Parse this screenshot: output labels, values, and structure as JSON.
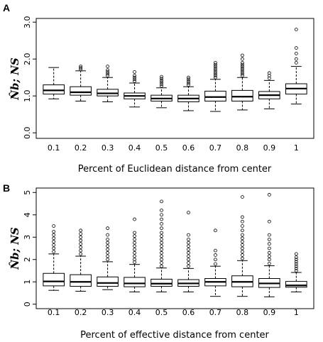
{
  "chart_data": [
    {
      "type": "boxplot",
      "panel_label": "A",
      "xlabel": "Percent of Euclidean distance from center",
      "ylabel": "N̂b; NS",
      "categories": [
        "0.1",
        "0.2",
        "0.3",
        "0.4",
        "0.5",
        "0.6",
        "0.7",
        "0.8",
        "0.9",
        "1"
      ],
      "ylim": [
        -0.15,
        3.1
      ],
      "yticks": [
        "0.0",
        "1.0",
        "2.0",
        "3.0"
      ],
      "ytick_values": [
        0,
        1,
        2,
        3
      ],
      "boxes": [
        {
          "whisker_low": 0.92,
          "q1": 1.05,
          "median": 1.15,
          "q3": 1.3,
          "whisker_high": 1.77,
          "outliers": []
        },
        {
          "whisker_low": 0.86,
          "q1": 1.02,
          "median": 1.1,
          "q3": 1.25,
          "whisker_high": 1.68,
          "outliers": [
            1.72,
            1.76,
            1.8
          ]
        },
        {
          "whisker_low": 0.84,
          "q1": 1.0,
          "median": 1.07,
          "q3": 1.18,
          "whisker_high": 1.5,
          "outliers": [
            1.55,
            1.6,
            1.65,
            1.7,
            1.8
          ]
        },
        {
          "whisker_low": 0.7,
          "q1": 0.92,
          "median": 1.0,
          "q3": 1.08,
          "whisker_high": 1.35,
          "outliers": [
            1.4,
            1.45,
            1.5,
            1.55,
            1.65
          ]
        },
        {
          "whisker_low": 0.68,
          "q1": 0.86,
          "median": 0.93,
          "q3": 1.02,
          "whisker_high": 1.22,
          "outliers": [
            1.27,
            1.32,
            1.37,
            1.42,
            1.47,
            1.52
          ]
        },
        {
          "whisker_low": 0.6,
          "q1": 0.84,
          "median": 0.93,
          "q3": 1.02,
          "whisker_high": 1.25,
          "outliers": [
            1.3,
            1.35,
            1.4,
            1.45,
            1.5
          ]
        },
        {
          "whisker_low": 0.58,
          "q1": 0.86,
          "median": 0.97,
          "q3": 1.13,
          "whisker_high": 1.45,
          "outliers": [
            1.5,
            1.55,
            1.6,
            1.65,
            1.7,
            1.75,
            1.8,
            1.85,
            1.9
          ]
        },
        {
          "whisker_low": 0.62,
          "q1": 0.86,
          "median": 0.98,
          "q3": 1.15,
          "whisker_high": 1.5,
          "outliers": [
            1.55,
            1.6,
            1.65,
            1.7,
            1.75,
            1.8,
            1.85,
            1.9,
            2.0,
            2.1
          ]
        },
        {
          "whisker_low": 0.65,
          "q1": 0.92,
          "median": 1.02,
          "q3": 1.12,
          "whisker_high": 1.42,
          "outliers": [
            1.48,
            1.55,
            1.62
          ]
        },
        {
          "whisker_low": 0.78,
          "q1": 1.05,
          "median": 1.2,
          "q3": 1.33,
          "whisker_high": 1.8,
          "outliers": [
            1.9,
            2.0,
            2.15,
            2.3,
            2.8
          ]
        }
      ]
    },
    {
      "type": "boxplot",
      "panel_label": "B",
      "xlabel": "Percent of effective distance from center",
      "ylabel": "N̂b; NS",
      "categories": [
        "0.1",
        "0.2",
        "0.3",
        "0.4",
        "0.5",
        "0.6",
        "0.7",
        "0.8",
        "0.9",
        "1"
      ],
      "ylim": [
        -0.2,
        5.2
      ],
      "yticks": [
        "0",
        "1",
        "2",
        "3",
        "4",
        "5"
      ],
      "ytick_values": [
        0,
        1,
        2,
        3,
        4,
        5
      ],
      "boxes": [
        {
          "whisker_low": 0.62,
          "q1": 0.82,
          "median": 1.02,
          "q3": 1.38,
          "whisker_high": 2.25,
          "outliers": [
            2.35,
            2.5,
            2.65,
            2.8,
            2.95,
            3.1,
            3.25,
            3.5
          ]
        },
        {
          "whisker_low": 0.58,
          "q1": 0.8,
          "median": 1.0,
          "q3": 1.32,
          "whisker_high": 2.15,
          "outliers": [
            2.25,
            2.4,
            2.55,
            2.7,
            2.85,
            3.0,
            3.15,
            3.3
          ]
        },
        {
          "whisker_low": 0.65,
          "q1": 0.8,
          "median": 0.95,
          "q3": 1.22,
          "whisker_high": 1.9,
          "outliers": [
            2.0,
            2.15,
            2.3,
            2.45,
            2.6,
            2.75,
            2.9,
            3.1,
            3.4
          ]
        },
        {
          "whisker_low": 0.55,
          "q1": 0.78,
          "median": 0.93,
          "q3": 1.2,
          "whisker_high": 1.78,
          "outliers": [
            1.88,
            2.0,
            2.15,
            2.3,
            2.45,
            2.6,
            2.75,
            2.9,
            3.05,
            3.2,
            3.8
          ]
        },
        {
          "whisker_low": 0.55,
          "q1": 0.8,
          "median": 0.92,
          "q3": 1.12,
          "whisker_high": 1.62,
          "outliers": [
            1.7,
            1.85,
            2.0,
            2.15,
            2.3,
            2.45,
            2.6,
            2.75,
            2.9,
            3.05,
            3.2,
            3.4,
            3.6,
            3.8,
            4.0,
            4.2,
            4.6
          ]
        },
        {
          "whisker_low": 0.55,
          "q1": 0.8,
          "median": 0.93,
          "q3": 1.1,
          "whisker_high": 1.6,
          "outliers": [
            1.7,
            1.85,
            2.0,
            2.15,
            2.3,
            2.45,
            2.6,
            2.75,
            2.9,
            3.1,
            4.1
          ]
        },
        {
          "whisker_low": 0.35,
          "q1": 0.82,
          "median": 1.0,
          "q3": 1.15,
          "whisker_high": 1.7,
          "outliers": [
            1.8,
            2.0,
            2.2,
            2.4,
            3.3
          ]
        },
        {
          "whisker_low": 0.35,
          "q1": 0.78,
          "median": 1.0,
          "q3": 1.27,
          "whisker_high": 1.95,
          "outliers": [
            2.05,
            2.2,
            2.35,
            2.5,
            2.65,
            2.8,
            2.95,
            3.1,
            3.3,
            3.5,
            3.7,
            3.9,
            4.8
          ]
        },
        {
          "whisker_low": 0.33,
          "q1": 0.75,
          "median": 0.93,
          "q3": 1.15,
          "whisker_high": 1.72,
          "outliers": [
            1.82,
            2.0,
            2.15,
            2.3,
            2.5,
            2.7,
            2.9,
            3.1,
            3.7,
            4.9
          ]
        },
        {
          "whisker_low": 0.55,
          "q1": 0.76,
          "median": 0.84,
          "q3": 1.02,
          "whisker_high": 1.42,
          "outliers": [
            1.5,
            1.6,
            1.7,
            1.8,
            1.9,
            2.0,
            2.1,
            2.25
          ]
        }
      ]
    }
  ]
}
